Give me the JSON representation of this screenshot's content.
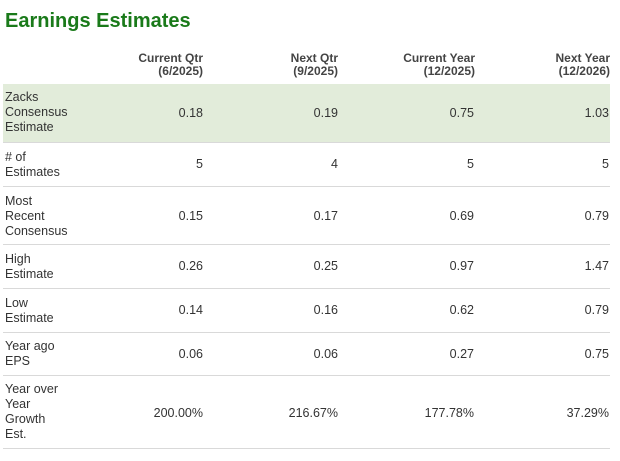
{
  "title": "Earnings Estimates",
  "columns": [
    {
      "line1": "Current Qtr",
      "line2": "(6/2025)"
    },
    {
      "line1": "Next Qtr",
      "line2": "(9/2025)"
    },
    {
      "line1": "Current Year",
      "line2": "(12/2025)"
    },
    {
      "line1": "Next Year",
      "line2": "(12/2026)"
    }
  ],
  "rows": [
    {
      "label": [
        "Zacks",
        "Consensus",
        "Estimate"
      ],
      "values": [
        "0.18",
        "0.19",
        "0.75",
        "1.03"
      ],
      "highlight": true
    },
    {
      "label": [
        "# of",
        "Estimates"
      ],
      "values": [
        "5",
        "4",
        "5",
        "5"
      ]
    },
    {
      "label": [
        "Most",
        "Recent",
        "Consensus"
      ],
      "values": [
        "0.15",
        "0.17",
        "0.69",
        "0.79"
      ]
    },
    {
      "label": [
        "High",
        "Estimate"
      ],
      "values": [
        "0.26",
        "0.25",
        "0.97",
        "1.47"
      ]
    },
    {
      "label": [
        "Low",
        "Estimate"
      ],
      "values": [
        "0.14",
        "0.16",
        "0.62",
        "0.79"
      ]
    },
    {
      "label": [
        "Year ago",
        "EPS"
      ],
      "values": [
        "0.06",
        "0.06",
        "0.27",
        "0.75"
      ]
    },
    {
      "label": [
        "Year over",
        "Year",
        "Growth",
        "Est."
      ],
      "values": [
        "200.00%",
        "216.67%",
        "177.78%",
        "37.29%"
      ]
    }
  ]
}
